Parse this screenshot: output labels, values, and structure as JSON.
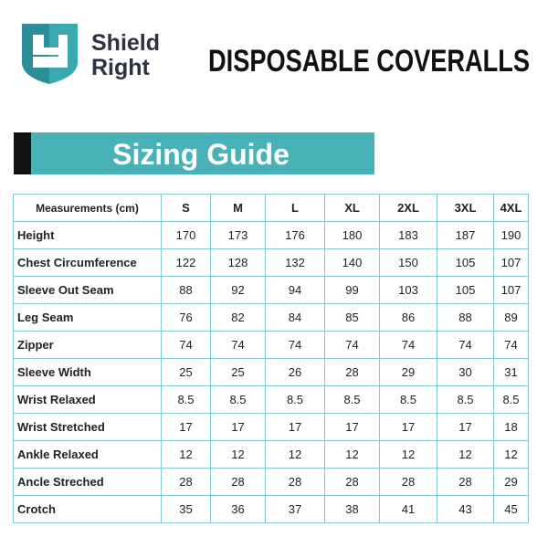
{
  "header": {
    "brand_line1": "Shield",
    "brand_line2": "Right",
    "title": "DISPOSABLE COVERALLS"
  },
  "banner": "Sizing Guide",
  "table": {
    "columns": [
      "Measurements (cm)",
      "S",
      "M",
      "L",
      "XL",
      "2XL",
      "3XL",
      "4XL"
    ],
    "rows": [
      [
        "Height",
        170,
        173,
        176,
        180,
        183,
        187,
        190
      ],
      [
        "Chest Circumference",
        122,
        128,
        132,
        140,
        150,
        105,
        107
      ],
      [
        "Sleeve Out Seam",
        88,
        92,
        94,
        99,
        103,
        105,
        107
      ],
      [
        "Leg Seam",
        76,
        82,
        84,
        85,
        86,
        88,
        89
      ],
      [
        "Zipper",
        74,
        74,
        74,
        74,
        74,
        74,
        74
      ],
      [
        "Sleeve Width",
        25,
        25,
        26,
        28,
        29,
        30,
        31
      ],
      [
        "Wrist Relaxed",
        8.5,
        8.5,
        8.5,
        8.5,
        8.5,
        8.5,
        8.5
      ],
      [
        "Wrist Stretched",
        17,
        17,
        17,
        17,
        17,
        17,
        18
      ],
      [
        "Ankle Relaxed",
        12,
        12,
        12,
        12,
        12,
        12,
        12
      ],
      [
        "Ancle Streched",
        28,
        28,
        28,
        28,
        28,
        28,
        29
      ],
      [
        "Crotch",
        35,
        36,
        37,
        38,
        41,
        43,
        45
      ]
    ]
  }
}
